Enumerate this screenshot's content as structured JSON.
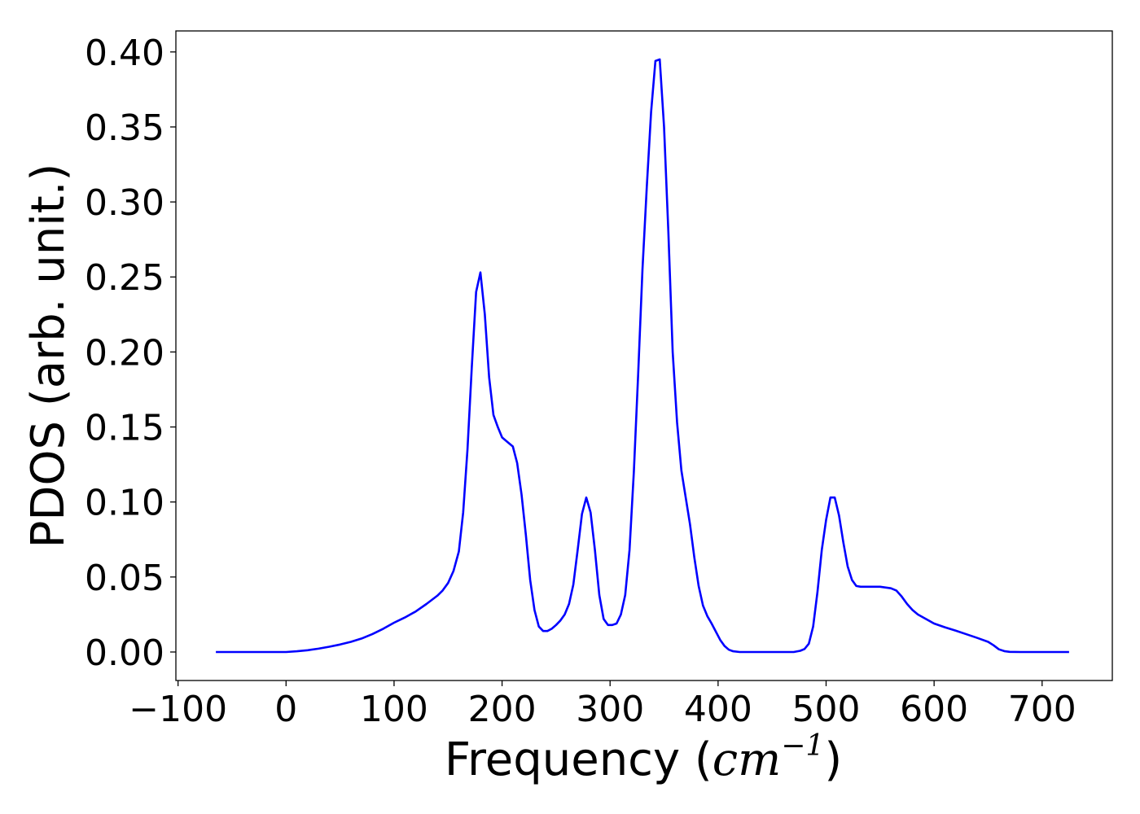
{
  "chart_data": {
    "type": "line",
    "title": "",
    "xlabel": "Frequency (",
    "xlabel_math_base": "cm",
    "xlabel_math_exponent": "−1",
    "xlabel_suffix": ")",
    "ylabel": "PDOS (arb. unit.)",
    "xlim": [
      -102,
      765
    ],
    "ylim": [
      -0.019,
      0.414
    ],
    "x_ticks": [
      -100,
      0,
      100,
      200,
      300,
      400,
      500,
      600,
      700
    ],
    "x_tick_labels": [
      "−100",
      "0",
      "100",
      "200",
      "300",
      "400",
      "500",
      "600",
      "700"
    ],
    "y_ticks": [
      0.0,
      0.05,
      0.1,
      0.15,
      0.2,
      0.25,
      0.3,
      0.35,
      0.4
    ],
    "y_tick_labels": [
      "0.00",
      "0.05",
      "0.10",
      "0.15",
      "0.20",
      "0.25",
      "0.30",
      "0.35",
      "0.40"
    ],
    "grid": false,
    "series": [
      {
        "color": "#0000ff",
        "x": [
          -65,
          0,
          10,
          20,
          30,
          40,
          50,
          60,
          70,
          80,
          90,
          100,
          110,
          120,
          130,
          140,
          145,
          150,
          155,
          160,
          164,
          168,
          172,
          176,
          180,
          184,
          188,
          192,
          196,
          200,
          205,
          210,
          214,
          218,
          222,
          226,
          230,
          234,
          238,
          242,
          246,
          250,
          254,
          258,
          262,
          266,
          270,
          274,
          278,
          282,
          286,
          290,
          294,
          298,
          302,
          306,
          310,
          314,
          318,
          322,
          326,
          330,
          334,
          338,
          342,
          346,
          350,
          354,
          358,
          362,
          366,
          370,
          374,
          378,
          382,
          386,
          390,
          394,
          398,
          402,
          406,
          410,
          414,
          420,
          440,
          460,
          470,
          476,
          480,
          484,
          488,
          492,
          496,
          500,
          504,
          508,
          512,
          516,
          520,
          524,
          528,
          532,
          540,
          550,
          560,
          565,
          570,
          575,
          580,
          585,
          590,
          600,
          610,
          620,
          630,
          640,
          650,
          655,
          660,
          665,
          670,
          680,
          700,
          725
        ],
        "y": [
          0.0,
          0.0,
          0.0005,
          0.0012,
          0.0022,
          0.0035,
          0.005,
          0.0068,
          0.009,
          0.012,
          0.0155,
          0.0195,
          0.023,
          0.027,
          0.032,
          0.0375,
          0.041,
          0.046,
          0.054,
          0.067,
          0.093,
          0.135,
          0.19,
          0.24,
          0.253,
          0.225,
          0.183,
          0.158,
          0.15,
          0.143,
          0.14,
          0.137,
          0.126,
          0.105,
          0.078,
          0.048,
          0.028,
          0.017,
          0.014,
          0.014,
          0.0155,
          0.018,
          0.021,
          0.025,
          0.032,
          0.045,
          0.068,
          0.092,
          0.103,
          0.093,
          0.068,
          0.038,
          0.022,
          0.018,
          0.018,
          0.019,
          0.025,
          0.038,
          0.068,
          0.12,
          0.185,
          0.255,
          0.31,
          0.36,
          0.394,
          0.395,
          0.35,
          0.28,
          0.2,
          0.153,
          0.121,
          0.103,
          0.085,
          0.063,
          0.044,
          0.031,
          0.024,
          0.019,
          0.0135,
          0.008,
          0.004,
          0.0015,
          0.0005,
          0.0,
          0.0,
          0.0,
          0.0,
          0.0008,
          0.002,
          0.0055,
          0.017,
          0.04,
          0.068,
          0.088,
          0.103,
          0.103,
          0.091,
          0.073,
          0.057,
          0.048,
          0.044,
          0.0435,
          0.0435,
          0.0435,
          0.0425,
          0.041,
          0.037,
          0.032,
          0.028,
          0.025,
          0.023,
          0.019,
          0.0165,
          0.0142,
          0.0118,
          0.0094,
          0.0068,
          0.0045,
          0.0018,
          0.0006,
          0.0001,
          0.0,
          0.0,
          0.0
        ]
      }
    ]
  }
}
